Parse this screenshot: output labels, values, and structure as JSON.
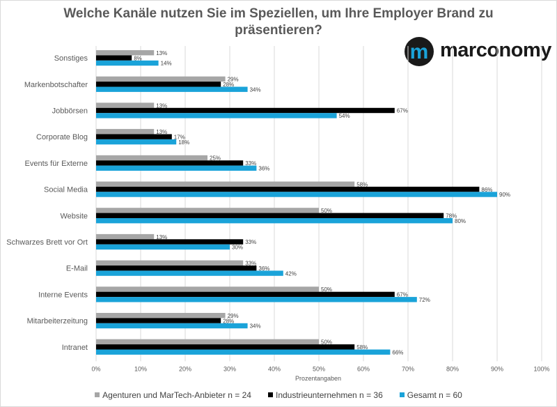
{
  "title": "Welche Kanäle nutzen Sie im Speziellen, um Ihre Employer Brand zu präsentieren?",
  "logo_text": "marconomy",
  "logo_mark_letter": "m",
  "colors": {
    "agenturen": "#a6a6a6",
    "industrie": "#000000",
    "gesamt": "#1aa3d9",
    "logo_blue": "#1aa3d9"
  },
  "chart_data": {
    "type": "bar",
    "orientation": "horizontal",
    "categories": [
      "Sonstiges",
      "Markenbotschafter",
      "Jobbörsen",
      "Corporate Blog",
      "Events für Externe",
      "Social Media",
      "Website",
      "Schwarzes Brett vor Ort",
      "E-Mail",
      "Interne Events",
      "Mitarbeiterzeitung",
      "Intranet"
    ],
    "series": [
      {
        "name": "Agenturen und MarTech-Anbieter n = 24",
        "values": [
          13,
          29,
          13,
          13,
          25,
          58,
          50,
          13,
          33,
          50,
          29,
          50
        ],
        "labels": [
          "13%",
          "29%",
          "13%",
          "13%",
          "25%",
          "58%",
          "50%",
          "13%",
          "33%",
          "50%",
          "29%",
          "50%"
        ]
      },
      {
        "name": "Industrieunternehmen n = 36",
        "values": [
          8,
          28,
          67,
          17,
          33,
          86,
          78,
          33,
          36,
          67,
          28,
          58
        ],
        "labels": [
          "8%",
          "28%",
          "67%",
          "17%",
          "33%",
          "86%",
          "78%",
          "33%",
          "36%",
          "67%",
          "28%",
          "58%"
        ]
      },
      {
        "name": "Gesamt n = 60",
        "values": [
          14,
          34,
          54,
          18,
          36,
          90,
          80,
          30,
          42,
          72,
          34,
          66
        ],
        "labels": [
          "14%",
          "34%",
          "54%",
          "18%",
          "36%",
          "90%",
          "80%",
          "30%",
          "42%",
          "72%",
          "34%",
          "66%"
        ]
      }
    ],
    "xlabel": "Prozentangaben",
    "ylabel": "",
    "xlim": [
      0,
      100
    ],
    "xticks": [
      "0%",
      "10%",
      "20%",
      "30%",
      "40%",
      "50%",
      "60%",
      "70%",
      "80%",
      "90%",
      "100%"
    ],
    "grid": true,
    "legend_position": "bottom"
  }
}
